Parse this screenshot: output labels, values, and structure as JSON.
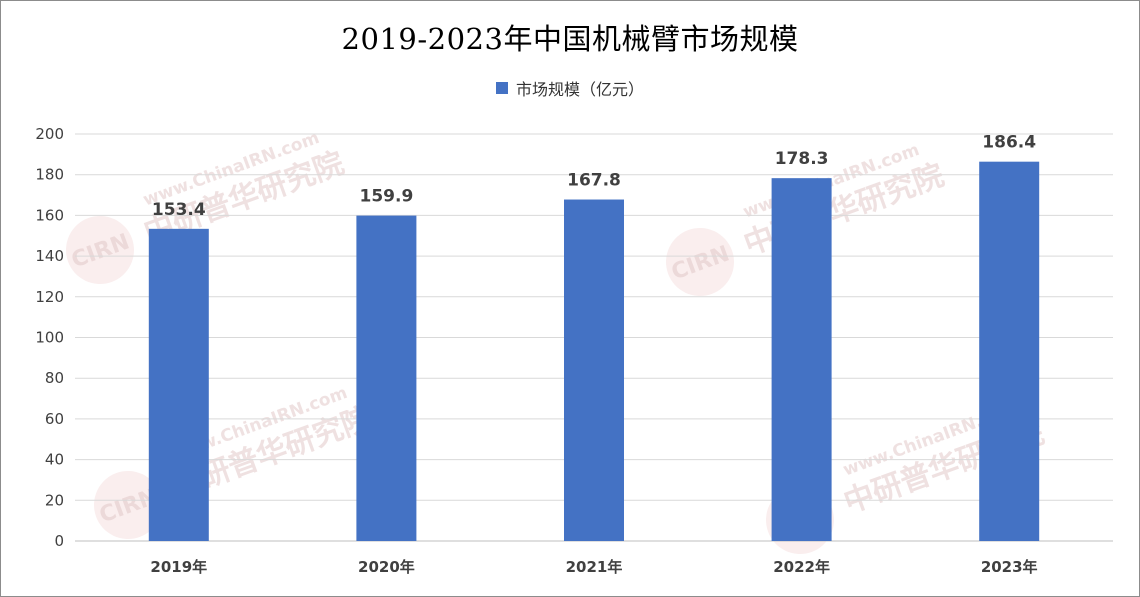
{
  "chart_data": {
    "type": "bar",
    "title": "2019-2023年中国机械臂市场规模",
    "categories": [
      "2019年",
      "2020年",
      "2021年",
      "2022年",
      "2023年"
    ],
    "series": [
      {
        "name": "市场规模（亿元）",
        "values": [
          153.4,
          159.9,
          167.8,
          178.3,
          186.4
        ]
      }
    ],
    "value_labels": [
      "153.4",
      "159.9",
      "167.8",
      "178.3",
      "186.4"
    ],
    "ylim": [
      0,
      200
    ],
    "yticks": [
      "0",
      "20",
      "40",
      "60",
      "80",
      "100",
      "120",
      "140",
      "160",
      "180",
      "200"
    ],
    "grid": true,
    "legend_position": "top",
    "colors": {
      "bar": "#4472C4",
      "grid": "#d9d9d9",
      "axis": "#bfbfbf"
    }
  },
  "watermark": {
    "badge": "CIRN",
    "text": "中研普华研究院",
    "url": "www.ChinaIRN.com"
  }
}
